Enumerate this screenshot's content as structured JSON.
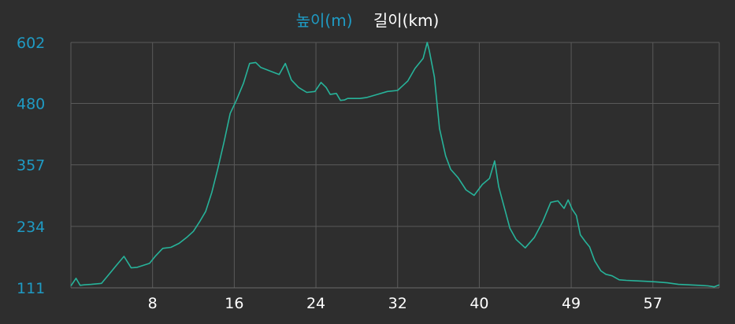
{
  "legend": {
    "elevation_label": "높이(m)",
    "distance_label": "길이(km)"
  },
  "colors": {
    "background": "#2e2e2e",
    "line": "#27b39a",
    "y_tick_color": "#1f9bc4",
    "x_tick_color": "#ffffff",
    "grid": "#5a5a5a"
  },
  "chart_data": {
    "type": "line",
    "title": "",
    "xlabel": "",
    "ylabel": "",
    "xlim": [
      0,
      63.5
    ],
    "ylim": [
      111,
      602
    ],
    "y_ticks": [
      "111",
      "234",
      "357",
      "480",
      "602"
    ],
    "x_ticks": [
      "8",
      "16",
      "24",
      "32",
      "40",
      "49",
      "57"
    ],
    "grid": true,
    "series": [
      {
        "name": "높이(m)",
        "x": [
          0,
          0.5,
          0.9,
          1.3,
          2,
          3,
          3.9,
          4.5,
          5.2,
          5.9,
          6.5,
          7.1,
          7.7,
          8.3,
          9,
          9.8,
          10.6,
          11.4,
          12,
          12.6,
          13.2,
          13.8,
          14.4,
          15,
          15.6,
          16.2,
          16.9,
          17.5,
          18.1,
          18.6,
          19.5,
          20.4,
          21,
          21.6,
          22.3,
          23.1,
          23.9,
          24.5,
          25,
          25.4,
          26,
          26.4,
          26.8,
          27.1,
          27.5,
          28.3,
          29,
          30,
          31,
          32,
          33,
          33.7,
          34.5,
          34.9,
          35.1,
          35.6,
          36.1,
          36.7,
          37.2,
          37.9,
          38.7,
          39.5,
          40.3,
          41,
          41.5,
          41.9,
          42.5,
          43,
          43.6,
          44.5,
          45.4,
          46.2,
          47,
          47.7,
          48.3,
          48.7,
          49.1,
          49.5,
          49.9,
          50.4,
          50.8,
          51.3,
          51.9,
          52.4,
          53,
          53.7,
          54.4,
          55.3,
          56.3,
          57.3,
          58.4,
          59.5,
          60.5,
          61.5,
          62.4,
          63,
          63.5
        ],
        "y": [
          115,
          130,
          116,
          117,
          118,
          120,
          142,
          157,
          174,
          151,
          152,
          156,
          160,
          175,
          190,
          192,
          200,
          213,
          224,
          243,
          264,
          302,
          350,
          403,
          460,
          486,
          520,
          560,
          562,
          552,
          545,
          538,
          560,
          527,
          512,
          502,
          504,
          522,
          512,
          498,
          500,
          486,
          487,
          490,
          490,
          490,
          492,
          498,
          504,
          506,
          525,
          550,
          570,
          602,
          586,
          533,
          430,
          375,
          348,
          332,
          307,
          296,
          318,
          330,
          365,
          313,
          268,
          230,
          208,
          191,
          212,
          243,
          282,
          285,
          270,
          287,
          268,
          256,
          217,
          203,
          193,
          165,
          145,
          138,
          135,
          127,
          126,
          125,
          124,
          123,
          121,
          118,
          117,
          116,
          115,
          113,
          117
        ]
      }
    ]
  }
}
